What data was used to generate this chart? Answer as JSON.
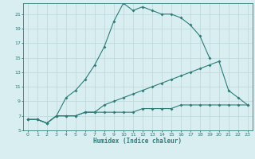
{
  "xlabel": "Humidex (Indice chaleur)",
  "bg_color": "#d9eef1",
  "line_color": "#2d7c77",
  "grid_color": "#b8d8dc",
  "xlim": [
    -0.5,
    23.5
  ],
  "ylim": [
    5,
    22.5
  ],
  "xticks": [
    0,
    1,
    2,
    3,
    4,
    5,
    6,
    7,
    8,
    9,
    10,
    11,
    12,
    13,
    14,
    15,
    16,
    17,
    18,
    19,
    20,
    21,
    22,
    23
  ],
  "yticks": [
    5,
    7,
    9,
    11,
    13,
    15,
    17,
    19,
    21
  ],
  "line1_x": [
    0,
    1,
    2,
    3,
    4,
    5,
    6,
    7,
    8,
    9,
    10,
    11,
    12,
    13,
    14,
    15,
    16,
    17,
    18,
    19
  ],
  "line1_y": [
    6.5,
    6.5,
    6.0,
    7.0,
    9.5,
    10.5,
    12.0,
    14.0,
    16.5,
    20.0,
    22.5,
    21.5,
    22.0,
    21.5,
    21.0,
    21.0,
    20.5,
    19.5,
    18.0,
    15.0
  ],
  "line2_x": [
    0,
    1,
    2,
    3,
    4,
    5,
    6,
    7,
    8,
    9,
    10,
    11,
    12,
    13,
    14,
    15,
    16,
    17,
    18,
    19,
    20,
    21,
    22,
    23
  ],
  "line2_y": [
    6.5,
    6.5,
    6.0,
    7.0,
    7.0,
    7.0,
    7.5,
    7.5,
    8.5,
    9.0,
    9.5,
    10.0,
    10.5,
    11.0,
    11.5,
    12.0,
    12.5,
    13.0,
    13.5,
    14.0,
    14.5,
    10.5,
    9.5,
    8.5
  ],
  "line3_x": [
    0,
    1,
    2,
    3,
    4,
    5,
    6,
    7,
    8,
    9,
    10,
    11,
    12,
    13,
    14,
    15,
    16,
    17,
    18,
    19,
    20,
    21,
    22,
    23
  ],
  "line3_y": [
    6.5,
    6.5,
    6.0,
    7.0,
    7.0,
    7.0,
    7.5,
    7.5,
    7.5,
    7.5,
    7.5,
    7.5,
    8.0,
    8.0,
    8.0,
    8.0,
    8.5,
    8.5,
    8.5,
    8.5,
    8.5,
    8.5,
    8.5,
    8.5
  ]
}
